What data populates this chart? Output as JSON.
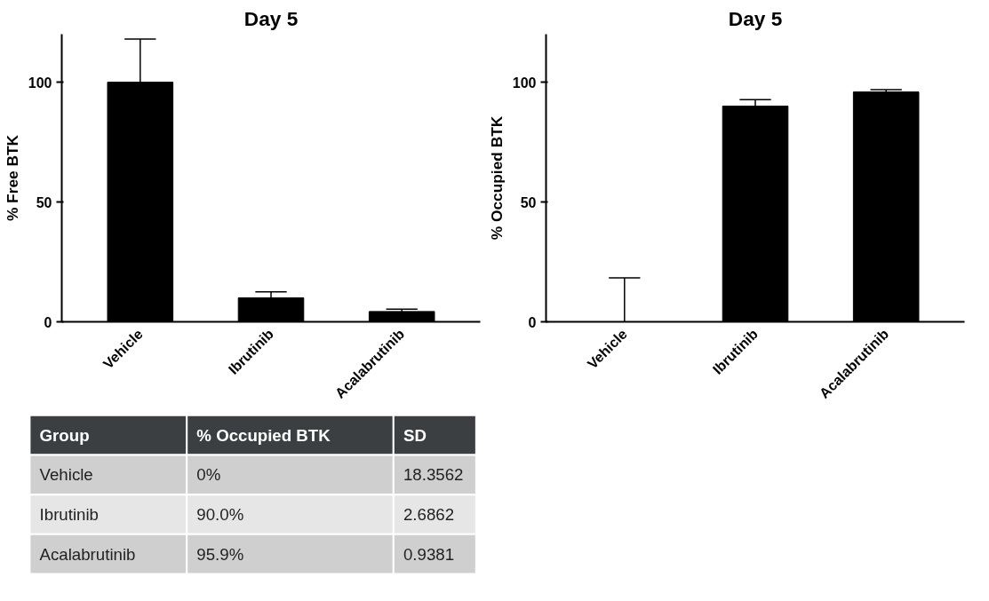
{
  "chart_data": [
    {
      "type": "bar",
      "title": "Day 5",
      "ylabel": "% Free BTK",
      "categories": [
        "Vehicle",
        "Ibrutinib",
        "Acalabrutinib"
      ],
      "series": [
        {
          "color": "#000000",
          "values": [
            100,
            10,
            4.3
          ],
          "errors": [
            18,
            2.5,
            1
          ]
        }
      ],
      "ylim": [
        0,
        120
      ],
      "yticks": [
        0,
        50,
        100
      ],
      "grid": false
    },
    {
      "type": "bar",
      "title": "Day 5",
      "ylabel": "% Occupied BTK",
      "categories": [
        "Vehicle",
        "Ibrutinib",
        "Acalabrutinib"
      ],
      "series": [
        {
          "color": "#000000",
          "values": [
            0,
            90.0,
            95.9
          ],
          "errors": [
            18.3562,
            2.6862,
            0.9381
          ]
        }
      ],
      "ylim": [
        0,
        120
      ],
      "yticks": [
        0,
        50,
        100
      ],
      "grid": false
    },
    {
      "type": "other",
      "xlabel": "Group",
      "categories": [
        "Vehicle",
        "Ibrutinib",
        "Acalabrutinib"
      ],
      "series": [
        {
          "name": "% Occupied BTK",
          "colors": [
            "#cfcfcf",
            "#e6e6e6",
            "#cfcfcf"
          ],
          "values": [
            0,
            90.0,
            95.9
          ],
          "value_labels": [
            "0%",
            "90.0%",
            "95.9%"
          ]
        },
        {
          "name": "SD",
          "colors": [
            "#cfcfcf",
            "#e6e6e6",
            "#cfcfcf"
          ],
          "values": [
            18.3562,
            2.6862,
            0.9381
          ],
          "value_labels": [
            "18.3562",
            "2.6862",
            "0.9381"
          ]
        }
      ]
    }
  ]
}
